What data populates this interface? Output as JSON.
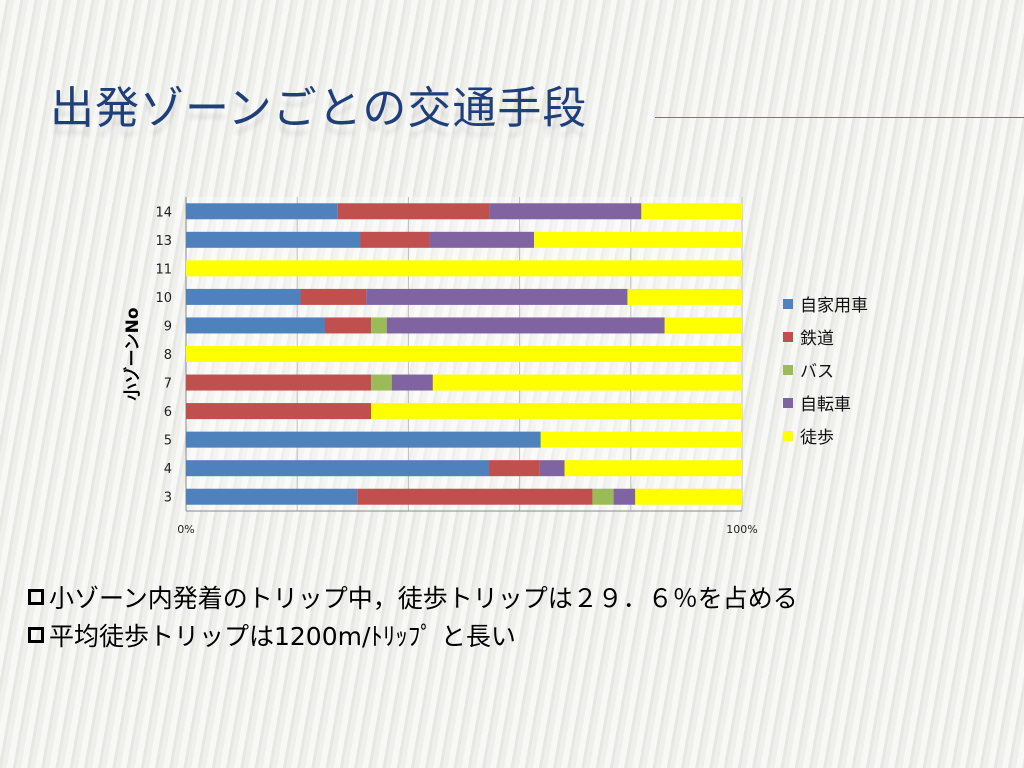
{
  "slide": {
    "title": "出発ゾーンごとの交通手段",
    "bullets": [
      "小ゾーン内発着のトリップ中，徒歩トリップは２９．６％を占める",
      "平均徒歩トリップは1200m/ﾄﾘｯﾌﾟ と長い"
    ]
  },
  "chart_data": {
    "type": "bar",
    "orientation": "horizontal",
    "stacked": "percent",
    "ylabel": "小ゾーンNo",
    "xlabel": "",
    "xlim": [
      0,
      100
    ],
    "x_tick_labels": [
      "0%",
      "100%"
    ],
    "grid": true,
    "legend_position": "right",
    "categories": [
      "14",
      "13",
      "11",
      "10",
      "9",
      "8",
      "7",
      "6",
      "5",
      "4",
      "3"
    ],
    "series": [
      {
        "name": "自家用車",
        "color": "#4f81bd",
        "values": [
          27.3,
          31.3,
          0,
          20.6,
          25.0,
          0,
          0,
          0,
          63.8,
          54.5,
          30.8
        ]
      },
      {
        "name": "鉄道",
        "color": "#c0504d",
        "values": [
          27.3,
          12.5,
          0,
          11.8,
          8.3,
          0,
          33.3,
          33.3,
          0,
          9.1,
          42.3
        ]
      },
      {
        "name": "バス",
        "color": "#9bbb59",
        "values": [
          0,
          0,
          0,
          0,
          2.8,
          0,
          3.7,
          0,
          0,
          0,
          3.8
        ]
      },
      {
        "name": "自転車",
        "color": "#8064a2",
        "values": [
          27.3,
          18.8,
          0,
          47.0,
          50.0,
          0,
          7.4,
          0,
          0,
          4.5,
          3.9
        ]
      },
      {
        "name": "徒歩",
        "color": "#ffff00",
        "values": [
          18.1,
          37.4,
          100,
          20.6,
          13.9,
          100,
          55.6,
          66.7,
          36.2,
          31.9,
          19.2
        ]
      }
    ]
  }
}
